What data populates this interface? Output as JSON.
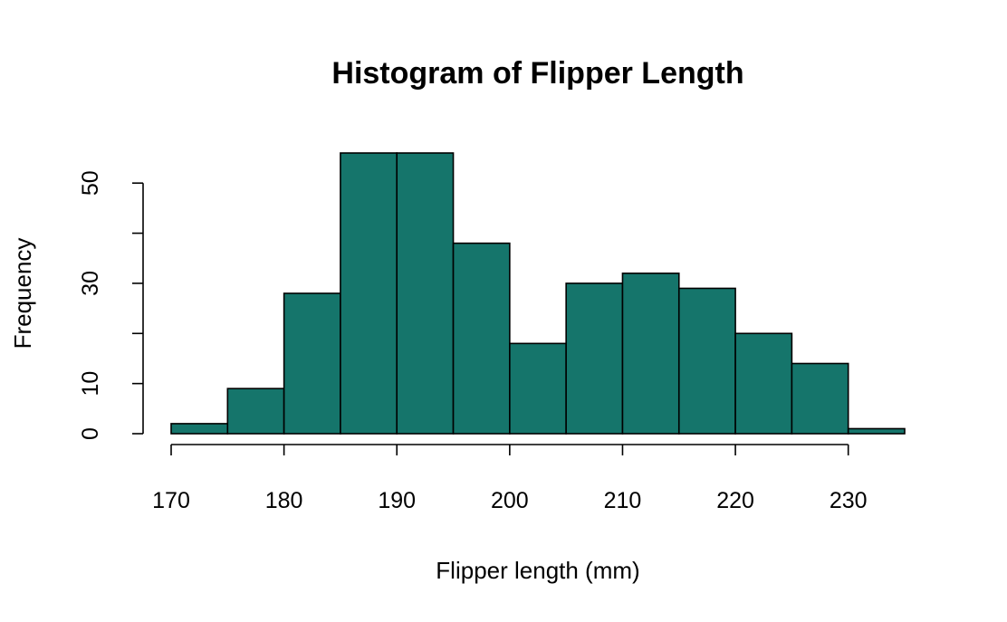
{
  "chart_data": {
    "type": "bar",
    "title": "Histogram of Flipper Length",
    "xlabel": "Flipper length (mm)",
    "ylabel": "Frequency",
    "bin_edges": [
      170,
      175,
      180,
      185,
      190,
      195,
      200,
      205,
      210,
      215,
      220,
      225,
      230,
      235
    ],
    "values": [
      2,
      9,
      28,
      56,
      56,
      38,
      18,
      30,
      32,
      29,
      20,
      14,
      1
    ],
    "xlim": [
      170,
      235
    ],
    "ylim": [
      0,
      56
    ],
    "x_ticks": [
      170,
      180,
      190,
      200,
      210,
      220,
      230
    ],
    "y_ticks": [
      0,
      10,
      20,
      30,
      40,
      50
    ],
    "y_tick_labels": [
      "0",
      "10",
      "",
      "30",
      "",
      "50"
    ],
    "bar_color": "#15756B",
    "grid": false
  }
}
